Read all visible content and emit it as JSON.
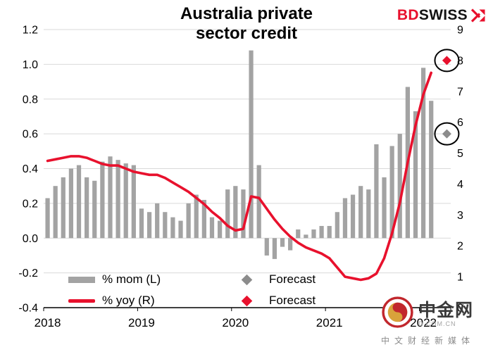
{
  "header": {
    "title_line1": "Australia private",
    "title_line2": "sector credit",
    "brand": {
      "bd": "BD",
      "swiss": "SWISS"
    }
  },
  "chart_data": {
    "type": "bar+line",
    "title": "Australia private sector credit",
    "x_years": [
      {
        "label": "2018",
        "month_index": 0
      },
      {
        "label": "2019",
        "month_index": 12
      },
      {
        "label": "2020",
        "month_index": 24
      },
      {
        "label": "2021",
        "month_index": 36
      },
      {
        "label": "2022",
        "month_index": 48
      }
    ],
    "left_axis": {
      "min": -0.4,
      "max": 1.2,
      "ticks": [
        1.2,
        1.0,
        0.8,
        0.6,
        0.4,
        0.2,
        0.0,
        -0.2,
        -0.4
      ],
      "tick_labels": [
        "1.2",
        "1.0",
        "0.8",
        "0.6",
        "0.4",
        "0.2",
        "0.0",
        "-0.2",
        "-0.4"
      ]
    },
    "right_axis": {
      "min": 0,
      "max": 9,
      "ticks": [
        9,
        8,
        7,
        6,
        5,
        4,
        3,
        2,
        1,
        0
      ],
      "tick_labels": [
        "9",
        "8",
        "7",
        "6",
        "5",
        "4",
        "3",
        "2",
        "1",
        "0"
      ]
    },
    "bar_series": {
      "name": "% mom (L)",
      "color": "#a3a3a3",
      "values": [
        0.23,
        0.3,
        0.35,
        0.4,
        0.42,
        0.35,
        0.33,
        0.44,
        0.47,
        0.45,
        0.43,
        0.42,
        0.17,
        0.15,
        0.2,
        0.15,
        0.12,
        0.1,
        0.2,
        0.25,
        0.22,
        0.12,
        0.1,
        0.28,
        0.3,
        0.28,
        1.08,
        0.42,
        -0.1,
        -0.12,
        -0.05,
        -0.07,
        0.05,
        0.02,
        0.05,
        0.07,
        0.07,
        0.15,
        0.23,
        0.25,
        0.3,
        0.28,
        0.54,
        0.35,
        0.53,
        0.6,
        0.87,
        0.73,
        0.98,
        0.79
      ]
    },
    "line_series": {
      "name": "% yoy (R)",
      "color": "#e8112d",
      "values": [
        4.75,
        4.8,
        4.85,
        4.9,
        4.9,
        4.85,
        4.75,
        4.65,
        4.6,
        4.6,
        4.5,
        4.4,
        4.35,
        4.3,
        4.3,
        4.2,
        4.05,
        3.9,
        3.75,
        3.55,
        3.35,
        3.1,
        2.9,
        2.65,
        2.5,
        2.55,
        3.6,
        3.55,
        3.2,
        2.85,
        2.55,
        2.3,
        2.1,
        1.95,
        1.85,
        1.75,
        1.6,
        1.3,
        1.0,
        0.95,
        0.9,
        0.95,
        1.1,
        1.6,
        2.4,
        3.4,
        4.7,
        5.9,
        6.9,
        7.6
      ]
    },
    "forecasts": [
      {
        "series": "% mom (L)",
        "label": "Forecast",
        "axis": "left",
        "value": 0.6,
        "color": "#8c8c8c",
        "circled": true
      },
      {
        "series": "% yoy (R)",
        "label": "Forecast",
        "axis": "right",
        "value": 8.0,
        "color": "#e8112d",
        "circled": true
      }
    ],
    "grid": true,
    "legend_position": "bottom-inside"
  },
  "legend": {
    "mom_label": "% mom (L)",
    "yoy_label": "% yoy (R)",
    "forecast_mom_label": "Forecast",
    "forecast_yoy_label": "Forecast"
  },
  "watermark": {
    "name": "中金网",
    "domain": "D.COM.CN",
    "tagline": "中文财经新媒体"
  },
  "colors": {
    "bar": "#a3a3a3",
    "line": "#e8112d",
    "grid": "#d9d9d9",
    "axis": "#000000",
    "annotation": "#000000"
  }
}
